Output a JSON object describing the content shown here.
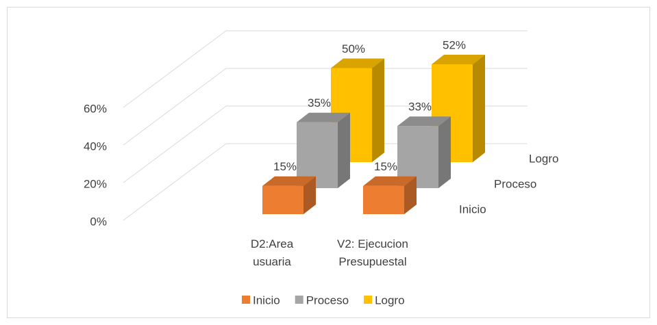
{
  "chart_data": {
    "type": "bar3d",
    "categories": [
      "D2:Area usuaria",
      "V2: Ejecucion Presupuestal"
    ],
    "series": [
      {
        "name": "Inicio",
        "color": "#ed7d31",
        "values": [
          15,
          15
        ],
        "value_labels": [
          "15%",
          "15%"
        ]
      },
      {
        "name": "Proceso",
        "color": "#a5a5a5",
        "values": [
          35,
          33
        ],
        "value_labels": [
          "35%",
          "33%"
        ]
      },
      {
        "name": "Logro",
        "color": "#ffc000",
        "values": [
          50,
          52
        ],
        "value_labels": [
          "50%",
          "52%"
        ]
      }
    ],
    "ylim": [
      0,
      60
    ],
    "yticks": [
      {
        "value": 0,
        "label": "0%"
      },
      {
        "value": 20,
        "label": "20%"
      },
      {
        "value": 40,
        "label": "40%"
      },
      {
        "value": 60,
        "label": "60%"
      }
    ],
    "grid": true,
    "legend": "bottom"
  }
}
